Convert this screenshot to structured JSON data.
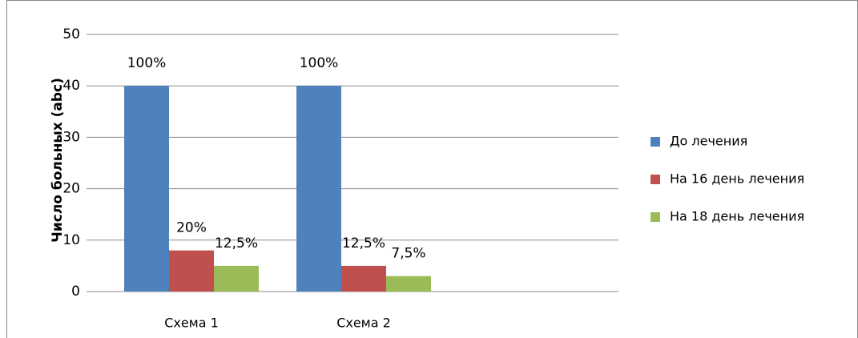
{
  "chart_data": {
    "type": "bar",
    "y_label": "Число больных (abc)",
    "categories": [
      "Схема 1",
      "Схема 2",
      null
    ],
    "series": [
      {
        "name": "До лечения",
        "color": "#4f81bd",
        "values": [
          40,
          40,
          null
        ],
        "value_labels": [
          "100%",
          "100%",
          null
        ]
      },
      {
        "name": "На 16 день лечения",
        "color": "#c0504d",
        "values": [
          8,
          5,
          null
        ],
        "value_labels": [
          "20%",
          "12,5%",
          null
        ]
      },
      {
        "name": "На 18 день лечения",
        "color": "#9bbb59",
        "values": [
          5,
          3,
          null
        ],
        "value_labels": [
          "12,5%",
          "7,5%",
          null
        ]
      }
    ],
    "ylim": [
      0,
      50
    ],
    "yticks": [
      0,
      10,
      20,
      30,
      40,
      50
    ],
    "grid": true,
    "legend": "right"
  }
}
